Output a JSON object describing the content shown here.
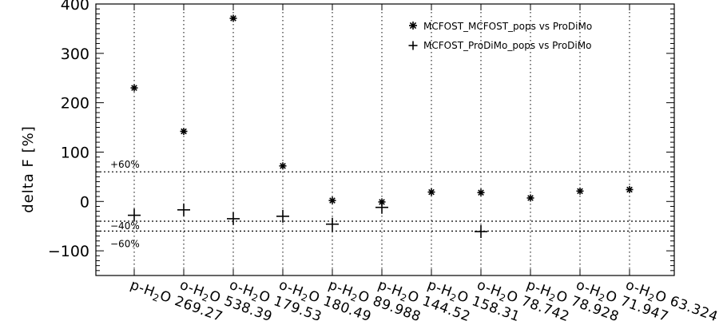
{
  "chart_data": {
    "type": "scatter",
    "ylabel": "delta F [%]",
    "xlabel": "",
    "ylim": [
      -150,
      400
    ],
    "yticks": [
      -100,
      0,
      100,
      200,
      300,
      400
    ],
    "ytick_labels": [
      "−100",
      "0",
      "100",
      "200",
      "300",
      "400"
    ],
    "categories": [
      "p-H₂O 269.27",
      "o-H₂O 538.39",
      "o-H₂O 179.53",
      "o-H₂O 180.49",
      "p-H₂O 89.988",
      "p-H₂O 144.52",
      "p-H₂O 158.31",
      "o-H₂O 78.742",
      "p-H₂O 78.928",
      "o-H₂O 71.947",
      "o-H₂O 63.324"
    ],
    "category_parts": [
      {
        "prefix": "p-H",
        "sub": "2",
        "rest": "O 269.27"
      },
      {
        "prefix": "o-H",
        "sub": "2",
        "rest": "O 538.39"
      },
      {
        "prefix": "o-H",
        "sub": "2",
        "rest": "O 179.53"
      },
      {
        "prefix": "o-H",
        "sub": "2",
        "rest": "O 180.49"
      },
      {
        "prefix": "p-H",
        "sub": "2",
        "rest": "O 89.988"
      },
      {
        "prefix": "p-H",
        "sub": "2",
        "rest": "O 144.52"
      },
      {
        "prefix": "p-H",
        "sub": "2",
        "rest": "O 158.31"
      },
      {
        "prefix": "o-H",
        "sub": "2",
        "rest": "O 78.742"
      },
      {
        "prefix": "p-H",
        "sub": "2",
        "rest": "O 78.928"
      },
      {
        "prefix": "o-H",
        "sub": "2",
        "rest": "O 71.947"
      },
      {
        "prefix": "o-H",
        "sub": "2",
        "rest": "O 63.324"
      }
    ],
    "series": [
      {
        "name": "MCFOST_MCFOST_pops vs ProDiMo",
        "marker": "asterisk",
        "values": [
          230,
          142,
          371,
          72,
          2,
          -1,
          19,
          18,
          7,
          21,
          24
        ]
      },
      {
        "name": "MCFOST_ProDiMo_pops vs ProDiMo",
        "marker": "plus",
        "values": [
          -28,
          -17,
          -35,
          -30,
          -46,
          -12,
          null,
          -61,
          null,
          null,
          null
        ]
      }
    ],
    "reference_lines": [
      {
        "value": 60,
        "label": "+60%"
      },
      {
        "value": -40,
        "label": "−40%"
      },
      {
        "value": -60,
        "label": "−60%"
      }
    ],
    "grid": "vertical dotted lines at each category",
    "legend_position": "top-right"
  }
}
